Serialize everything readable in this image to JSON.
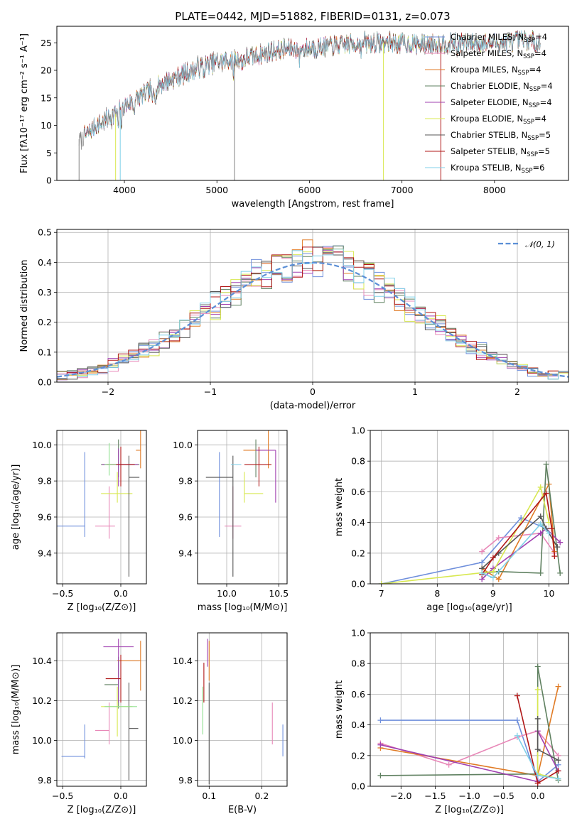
{
  "colors": {
    "chabrier_miles": "#6f8fdc",
    "salpeter_miles": "#e888b8",
    "kroupa_miles": "#e07b25",
    "chabrier_elodie": "#5f8060",
    "salpeter_elodie": "#a040b0",
    "kroupa_elodie": "#d8e850",
    "chabrier_stelib": "#555555",
    "salpeter_stelib": "#b01818",
    "kroupa_stelib": "#80d0e8",
    "green_light": "#90e090",
    "data_gray": "#808080",
    "normal_curve": "#5b8fd6"
  },
  "chart_data": [
    {
      "id": "spectrum",
      "type": "line",
      "title": "PLATE=0442, MJD=51882, FIBERID=0131, z=0.073",
      "xlabel": "wavelength [Angstrom, rest frame]",
      "ylabel": "Flux [fλ10⁻¹⁷ erg cm⁻² s⁻¹ A⁻¹]",
      "xlim": [
        3270,
        8800
      ],
      "ylim": [
        0,
        28
      ],
      "xticks": [
        4000,
        5000,
        6000,
        7000,
        8000
      ],
      "yticks": [
        0,
        5,
        10,
        15,
        20,
        25
      ],
      "grid": false,
      "legend_position": "right",
      "legend": [
        {
          "label": "Chabrier MILES, N",
          "sub": "SSP",
          "tail": "=4",
          "color": "chabrier_miles"
        },
        {
          "label": "Salpeter MILES, N",
          "sub": "SSP",
          "tail": "=4",
          "color": "salpeter_miles"
        },
        {
          "label": "Kroupa MILES, N",
          "sub": "SSP",
          "tail": "=4",
          "color": "kroupa_miles"
        },
        {
          "label": "Chabrier ELODIE, N",
          "sub": "SSP",
          "tail": "=4",
          "color": "chabrier_elodie"
        },
        {
          "label": "Salpeter ELODIE, N",
          "sub": "SSP",
          "tail": "=4",
          "color": "salpeter_elodie"
        },
        {
          "label": "Kroupa ELODIE, N",
          "sub": "SSP",
          "tail": "=4",
          "color": "kroupa_elodie"
        },
        {
          "label": "Chabrier STELIB, N",
          "sub": "SSP",
          "tail": "=5",
          "color": "chabrier_stelib"
        },
        {
          "label": "Salpeter STELIB, N",
          "sub": "SSP",
          "tail": "=5",
          "color": "salpeter_stelib"
        },
        {
          "label": "Kroupa STELIB, N",
          "sub": "SSP",
          "tail": "=6",
          "color": "kroupa_stelib"
        }
      ],
      "continuum": {
        "x": [
          3510,
          3600,
          3700,
          3800,
          3900,
          4000,
          4200,
          4400,
          4600,
          4800,
          5000,
          5200,
          5400,
          5600,
          5800,
          6000,
          6300,
          6600,
          6900,
          7200,
          7500,
          7800,
          8100,
          8300,
          8500
        ],
        "y": [
          7.5,
          8.5,
          10,
          11,
          12,
          13.5,
          15.5,
          17.5,
          19,
          20.5,
          21.5,
          22,
          22.5,
          23.5,
          24,
          24,
          24.5,
          25,
          25,
          24.7,
          25,
          25,
          25,
          25.5,
          25
        ]
      }
    },
    {
      "id": "residuals",
      "type": "histogram",
      "xlabel": "(data-model)/error",
      "ylabel": "Normed distribution",
      "xlim": [
        -2.5,
        2.5
      ],
      "ylim": [
        0,
        0.51
      ],
      "xticks": [
        -2,
        -1,
        0,
        1,
        2
      ],
      "yticks": [
        0.0,
        0.1,
        0.2,
        0.3,
        0.4,
        0.5
      ],
      "grid": true,
      "legend_position": "top-right",
      "bin_width": 0.1,
      "normal_label": "𝒩(0, 1)",
      "normal": {
        "mu": 0,
        "sigma": 1
      }
    },
    {
      "id": "age_vs_z",
      "type": "scatter",
      "xlabel": "Z [log₁₀(Z/Z⊙)]",
      "ylabel": "age  [log₁₀(age/yr)]",
      "xlim": [
        -0.55,
        0.22
      ],
      "ylim": [
        9.23,
        10.08
      ],
      "xticks": [
        -0.5,
        0.0
      ],
      "yticks": [
        9.4,
        9.6,
        9.8,
        10.0
      ],
      "grid": true,
      "points": [
        {
          "c": "chabrier_miles",
          "x": -0.31,
          "y": 9.55,
          "xerr": [
            0.24,
            0.0
          ],
          "yerr": [
            0.06,
            0.41
          ]
        },
        {
          "c": "salpeter_miles",
          "x": -0.1,
          "y": 9.55,
          "xerr": [
            0.12,
            0.05
          ],
          "yerr": [
            0.07,
            0.22
          ]
        },
        {
          "c": "kroupa_miles",
          "x": 0.17,
          "y": 9.97,
          "xerr": [
            0.04,
            0.0
          ],
          "yerr": [
            0.1,
            0.12
          ]
        },
        {
          "c": "chabrier_elodie",
          "x": -0.02,
          "y": 9.89,
          "xerr": [
            0.15,
            0.18
          ],
          "yerr": [
            0.07,
            0.14
          ]
        },
        {
          "c": "salpeter_elodie",
          "x": -0.02,
          "y": 9.89,
          "xerr": [
            0.14,
            0.17
          ],
          "yerr": [
            0.12,
            0.09
          ]
        },
        {
          "c": "kroupa_elodie",
          "x": -0.03,
          "y": 9.73,
          "xerr": [
            0.14,
            0.13
          ],
          "yerr": [
            0.05,
            0.12
          ]
        },
        {
          "c": "chabrier_stelib",
          "x": 0.07,
          "y": 9.82,
          "xerr": [
            0.0,
            0.09
          ],
          "yerr": [
            0.55,
            0.12
          ]
        },
        {
          "c": "salpeter_stelib",
          "x": 0.0,
          "y": 9.89,
          "xerr": [
            0.12,
            0.12
          ],
          "yerr": [
            0.12,
            0.1
          ]
        },
        {
          "c": "green_light",
          "x": -0.1,
          "y": 9.89,
          "xerr": [
            0.04,
            0.06
          ],
          "yerr": [
            0.06,
            0.12
          ]
        }
      ]
    },
    {
      "id": "age_vs_mass",
      "type": "scatter",
      "xlabel": "mass [log₁₀(M/M⊙)]",
      "ylabel": "",
      "xlim": [
        9.72,
        10.58
      ],
      "ylim": [
        9.23,
        10.08
      ],
      "xticks": [
        10.0,
        10.5
      ],
      "yticks": [
        9.4,
        9.6,
        9.8,
        10.0
      ],
      "grid": true,
      "points": [
        {
          "c": "chabrier_miles",
          "x": 9.93,
          "y": 9.55,
          "xerr": [
            0.0,
            0.0
          ],
          "yerr": [
            0.06,
            0.41
          ]
        },
        {
          "c": "salpeter_miles",
          "x": 10.06,
          "y": 9.55,
          "xerr": [
            0.08,
            0.08
          ],
          "yerr": [
            0.07,
            0.22
          ]
        },
        {
          "c": "kroupa_miles",
          "x": 10.4,
          "y": 9.97,
          "xerr": [
            0.24,
            0.0
          ],
          "yerr": [
            0.1,
            0.12
          ]
        },
        {
          "c": "chabrier_elodie",
          "x": 10.28,
          "y": 9.89,
          "xerr": [
            0.0,
            0.0
          ],
          "yerr": [
            0.07,
            0.14
          ]
        },
        {
          "c": "salpeter_elodie",
          "x": 10.47,
          "y": 9.97,
          "xerr": [
            0.19,
            0.0
          ],
          "yerr": [
            0.29,
            0.0
          ]
        },
        {
          "c": "kroupa_elodie",
          "x": 10.17,
          "y": 9.73,
          "xerr": [
            0.0,
            0.18
          ],
          "yerr": [
            0.05,
            0.12
          ]
        },
        {
          "c": "chabrier_stelib",
          "x": 10.06,
          "y": 9.82,
          "xerr": [
            0.26,
            0.0
          ],
          "yerr": [
            0.55,
            0.12
          ]
        },
        {
          "c": "salpeter_stelib",
          "x": 10.31,
          "y": 9.89,
          "xerr": [
            0.14,
            0.12
          ],
          "yerr": [
            0.12,
            0.1
          ]
        },
        {
          "c": "kroupa_stelib",
          "x": 10.14,
          "y": 9.89,
          "xerr": [
            0.1,
            0.0
          ],
          "yerr": [
            0.0,
            0.0
          ]
        }
      ]
    },
    {
      "id": "weight_vs_age",
      "type": "line",
      "xlabel": "age  [log₁₀(age/yr)]",
      "ylabel": "mass weight",
      "xlim": [
        6.8,
        10.35
      ],
      "ylim": [
        0,
        1.0
      ],
      "xticks": [
        7,
        8,
        9,
        10
      ],
      "yticks": [
        0.0,
        0.2,
        0.4,
        0.6,
        0.8,
        1.0
      ],
      "grid": true,
      "series": [
        {
          "c": "chabrier_miles",
          "x": [
            7.0,
            8.8,
            9.5,
            9.95
          ],
          "y": [
            0.0,
            0.14,
            0.43,
            0.36
          ]
        },
        {
          "c": "salpeter_miles",
          "x": [
            8.8,
            9.1,
            9.85,
            10.1
          ],
          "y": [
            0.21,
            0.3,
            0.33,
            0.2
          ]
        },
        {
          "c": "kroupa_miles",
          "x": [
            8.8,
            9.1,
            10.0,
            10.1
          ],
          "y": [
            0.1,
            0.03,
            0.65,
            0.21
          ]
        },
        {
          "c": "chabrier_elodie",
          "x": [
            8.8,
            9.1,
            9.85,
            9.95,
            10.2
          ],
          "y": [
            0.07,
            0.08,
            0.07,
            0.78,
            0.07
          ]
        },
        {
          "c": "salpeter_elodie",
          "x": [
            8.8,
            9.0,
            9.85,
            9.95,
            10.2
          ],
          "y": [
            0.03,
            0.1,
            0.33,
            0.36,
            0.27
          ]
        },
        {
          "c": "kroupa_elodie",
          "x": [
            7.0,
            9.0,
            9.85,
            10.0
          ],
          "y": [
            0.0,
            0.08,
            0.63,
            0.4
          ]
        },
        {
          "c": "chabrier_stelib",
          "x": [
            8.8,
            9.1,
            9.85,
            9.95,
            10.15
          ],
          "y": [
            0.1,
            0.2,
            0.44,
            0.36,
            0.24
          ]
        },
        {
          "c": "salpeter_stelib",
          "x": [
            8.8,
            9.0,
            9.95,
            10.05,
            10.1
          ],
          "y": [
            0.06,
            0.17,
            0.59,
            0.36,
            0.18
          ]
        },
        {
          "c": "kroupa_stelib",
          "x": [
            8.8,
            9.0,
            9.85,
            10.0
          ],
          "y": [
            0.07,
            0.04,
            0.39,
            0.33
          ]
        }
      ]
    },
    {
      "id": "mass_vs_z",
      "type": "scatter",
      "xlabel": "Z [log₁₀(Z/Z⊙)]",
      "ylabel": "mass [log₁₀(M/M⊙)]",
      "xlim": [
        -0.55,
        0.22
      ],
      "ylim": [
        9.77,
        10.54
      ],
      "xticks": [
        -0.5,
        0.0
      ],
      "yticks": [
        9.8,
        10.0,
        10.2,
        10.4
      ],
      "grid": true,
      "points": [
        {
          "c": "chabrier_miles",
          "x": -0.31,
          "y": 9.92,
          "xerr": [
            0.2,
            0.0
          ],
          "yerr": [
            0.01,
            0.16
          ]
        },
        {
          "c": "salpeter_miles",
          "x": -0.1,
          "y": 10.05,
          "xerr": [
            0.12,
            0.0
          ],
          "yerr": [
            0.07,
            0.14
          ]
        },
        {
          "c": "kroupa_miles",
          "x": 0.17,
          "y": 10.4,
          "xerr": [
            0.2,
            0.0
          ],
          "yerr": [
            0.15,
            0.1
          ]
        },
        {
          "c": "chabrier_elodie",
          "x": -0.02,
          "y": 10.28,
          "xerr": [
            0.12,
            0.0
          ],
          "yerr": [
            0.12,
            0.14
          ]
        },
        {
          "c": "salpeter_elodie",
          "x": -0.02,
          "y": 10.47,
          "xerr": [
            0.13,
            0.13
          ],
          "yerr": [
            0.28,
            0.04
          ]
        },
        {
          "c": "kroupa_elodie",
          "x": -0.03,
          "y": 10.17,
          "xerr": [
            0.14,
            0.13
          ],
          "yerr": [
            0.15,
            0.1
          ]
        },
        {
          "c": "chabrier_stelib",
          "x": 0.07,
          "y": 10.06,
          "xerr": [
            0.0,
            0.08
          ],
          "yerr": [
            0.26,
            0.23
          ]
        },
        {
          "c": "salpeter_stelib",
          "x": 0.0,
          "y": 10.31,
          "xerr": [
            0.13,
            0.0
          ],
          "yerr": [
            0.12,
            0.12
          ]
        },
        {
          "c": "green_light",
          "x": -0.02,
          "y": 10.17,
          "xerr": [
            0.12,
            0.16
          ],
          "yerr": [
            0.0,
            0.0
          ]
        }
      ]
    },
    {
      "id": "mass_vs_ebv",
      "type": "scatter",
      "xlabel": "E(B-V)",
      "ylabel": "",
      "xlim": [
        0.078,
        0.248
      ],
      "ylim": [
        9.77,
        10.54
      ],
      "xticks": [
        0.1,
        0.2
      ],
      "yticks": [
        9.8,
        10.0,
        10.2,
        10.4
      ],
      "grid": true,
      "points": [
        {
          "c": "chabrier_miles",
          "x": 0.24,
          "y": 10.0,
          "xerr": [
            0,
            0
          ],
          "yerr": [
            0.08,
            0.08
          ]
        },
        {
          "c": "salpeter_miles",
          "x": 0.22,
          "y": 10.05,
          "xerr": [
            0,
            0
          ],
          "yerr": [
            0.07,
            0.14
          ]
        },
        {
          "c": "kroupa_miles",
          "x": 0.1,
          "y": 10.4,
          "xerr": [
            0,
            0
          ],
          "yerr": [
            0.1,
            0.1
          ]
        },
        {
          "c": "salpeter_elodie",
          "x": 0.097,
          "y": 10.47,
          "xerr": [
            0,
            0
          ],
          "yerr": [
            0.1,
            0.04
          ]
        },
        {
          "c": "chabrier_stelib",
          "x": 0.1,
          "y": 10.06,
          "xerr": [
            0,
            0
          ],
          "yerr": [
            0.28,
            0.23
          ]
        },
        {
          "c": "salpeter_stelib",
          "x": 0.09,
          "y": 10.31,
          "xerr": [
            0,
            0
          ],
          "yerr": [
            0.12,
            0.08
          ]
        },
        {
          "c": "green_light",
          "x": 0.088,
          "y": 10.17,
          "xerr": [
            0,
            0
          ],
          "yerr": [
            0.14,
            0.1
          ]
        }
      ]
    },
    {
      "id": "weight_vs_z",
      "type": "line",
      "xlabel": "Z [log₁₀(Z/Z⊙)]",
      "ylabel": "mass weight",
      "xlim": [
        -2.45,
        0.45
      ],
      "ylim": [
        0,
        1.0
      ],
      "xticks": [
        -2.0,
        -1.5,
        -1.0,
        -0.5,
        0.0
      ],
      "yticks": [
        0.0,
        0.2,
        0.4,
        0.6,
        0.8,
        1.0
      ],
      "grid": true,
      "series": [
        {
          "c": "chabrier_miles",
          "x": [
            -2.3,
            -0.3,
            0.0,
            0.3
          ],
          "y": [
            0.43,
            0.43,
            0.03,
            0.14
          ]
        },
        {
          "c": "salpeter_miles",
          "x": [
            -2.3,
            -1.3,
            -0.3,
            0.0,
            0.3
          ],
          "y": [
            0.28,
            0.14,
            0.32,
            0.36,
            0.2
          ]
        },
        {
          "c": "kroupa_miles",
          "x": [
            -2.3,
            0.0,
            0.3
          ],
          "y": [
            0.25,
            0.07,
            0.65
          ]
        },
        {
          "c": "chabrier_elodie",
          "x": [
            -2.3,
            0.0,
            0.0,
            0.3
          ],
          "y": [
            0.07,
            0.08,
            0.78,
            0.04
          ]
        },
        {
          "c": "salpeter_elodie",
          "x": [
            -2.3,
            0.0,
            0.0,
            0.3
          ],
          "y": [
            0.27,
            0.03,
            0.36,
            0.1
          ]
        },
        {
          "c": "kroupa_elodie",
          "x": [
            0.0,
            0.0,
            0.3
          ],
          "y": [
            0.63,
            0.08,
            0.05
          ]
        },
        {
          "c": "chabrier_stelib",
          "x": [
            0.0,
            0.0,
            0.3
          ],
          "y": [
            0.44,
            0.24,
            0.17
          ]
        },
        {
          "c": "salpeter_stelib",
          "x": [
            -0.3,
            0.0,
            0.3
          ],
          "y": [
            0.59,
            0.02,
            0.1
          ]
        },
        {
          "c": "kroupa_stelib",
          "x": [
            -0.3,
            0.0,
            0.3
          ],
          "y": [
            0.33,
            0.07,
            0.05
          ]
        }
      ]
    }
  ]
}
